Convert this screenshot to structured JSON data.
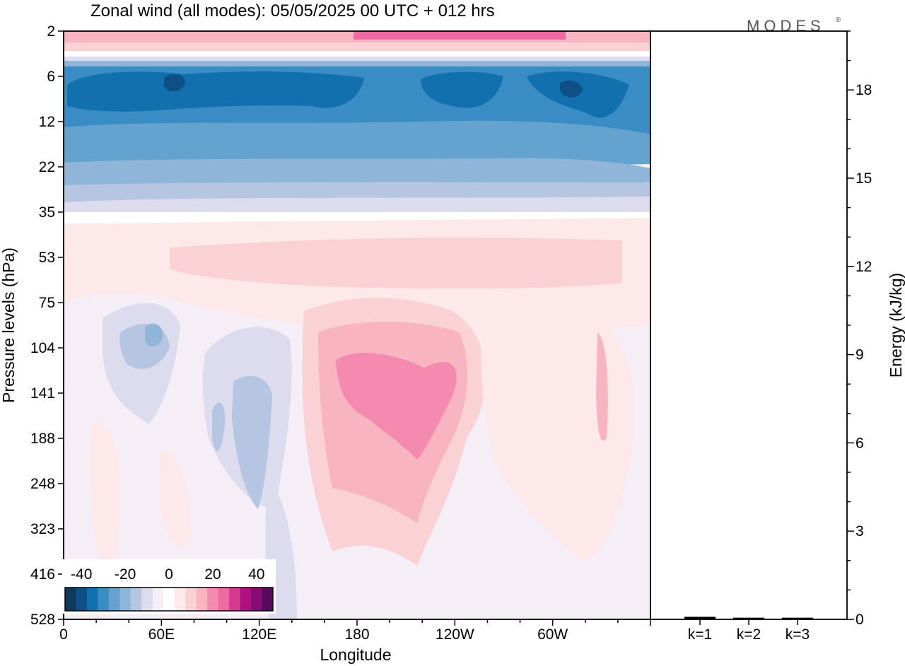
{
  "title": "Zonal wind (all modes):  05/05/2025  00 UTC  + 012 hrs",
  "brand": "MODES",
  "brand_mark": "®",
  "chart_data": [
    {
      "type": "heatmap",
      "xlabel": "Longitude",
      "ylabel": "Pressure levels (hPa)",
      "x_ticks": [
        "0",
        "60E",
        "120E",
        "180",
        "120W",
        "60W"
      ],
      "x_values": [
        0,
        60,
        120,
        180,
        240,
        300
      ],
      "xlim": [
        0,
        360
      ],
      "y_ticks": [
        "2",
        "6",
        "12",
        "22",
        "35",
        "53",
        "75",
        "104",
        "141",
        "188",
        "248",
        "323",
        "416",
        "528"
      ],
      "y_scale": "log",
      "ylim": [
        528,
        2
      ],
      "colorbar": {
        "ticks": [
          "-40",
          "-20",
          "0",
          "20",
          "40"
        ],
        "levels": [
          -45,
          -40,
          -35,
          -30,
          -25,
          -20,
          -15,
          -10,
          -5,
          0,
          5,
          10,
          15,
          20,
          25,
          30,
          35,
          40,
          45
        ],
        "colors": [
          "#0e3a60",
          "#0d4f86",
          "#1170ad",
          "#3a8dc4",
          "#64a3cf",
          "#8fb6d9",
          "#b6c5e2",
          "#dcdcee",
          "#f5eef6",
          "#ffffff",
          "#fde9ea",
          "#fad2d6",
          "#f8b4c1",
          "#f58ab0",
          "#ee6aa3",
          "#d63a8e",
          "#b0117e",
          "#860d76",
          "#5a0a5e"
        ]
      },
      "features": [
        {
          "pressure_hPa": 2,
          "approx_value": 20,
          "note": "positive band at top"
        },
        {
          "pressure_hPa": 9,
          "approx_value": -40,
          "note": "strong easterly core 6-12 hPa"
        },
        {
          "pressure_hPa": 22,
          "approx_value": -20
        },
        {
          "pressure_hPa": 53,
          "approx_value": 7
        },
        {
          "pressure_hPa": 141,
          "lon": 195,
          "approx_value": 18,
          "note": "westerly maximum near 180-160W"
        },
        {
          "pressure_hPa": 120,
          "lon": 45,
          "approx_value": -15
        },
        {
          "pressure_hPa": 160,
          "lon": 105,
          "approx_value": -10
        }
      ]
    },
    {
      "type": "bar",
      "categories": [
        "k=1",
        "k=2",
        "k=3"
      ],
      "values": [
        0.05,
        0.02,
        0.02
      ],
      "ylabel": "Energy (kJ/kg)",
      "y_ticks": [
        "0",
        "3",
        "6",
        "9",
        "12",
        "15",
        "18"
      ],
      "ylim": [
        0,
        20
      ],
      "color": "#000000"
    }
  ]
}
